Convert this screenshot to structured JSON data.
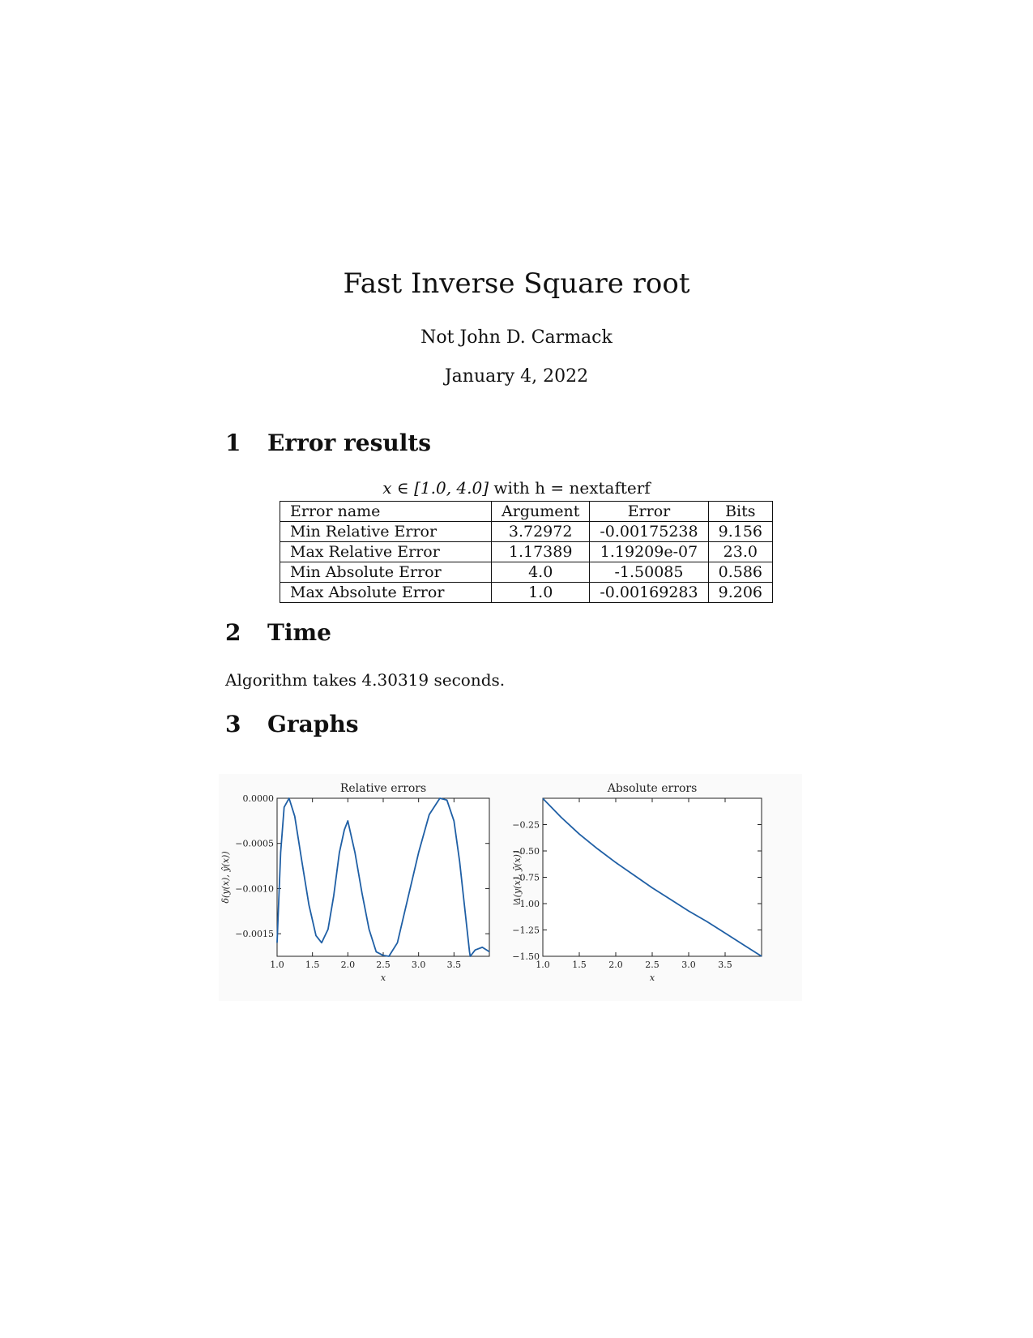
{
  "paper": {
    "title": "Fast Inverse Square root",
    "author": "Not John D. Carmack",
    "date": "January 4, 2022"
  },
  "sections": [
    {
      "number": "1",
      "title": "Error results"
    },
    {
      "number": "2",
      "title": "Time"
    },
    {
      "number": "3",
      "title": "Graphs"
    }
  ],
  "table": {
    "caption_math": "x ∈ [1.0, 4.0]",
    "caption_text": " with h = nextafterf",
    "headers": [
      "Error name",
      "Argument",
      "Error",
      "Bits"
    ],
    "rows": [
      [
        "Min Relative Error",
        "3.72972",
        "-0.00175238",
        "9.156"
      ],
      [
        "Max Relative Error",
        "1.17389",
        "1.19209e-07",
        "23.0"
      ],
      [
        "Min Absolute Error",
        "4.0",
        "-1.50085",
        "0.586"
      ],
      [
        "Max Absolute Error",
        "1.0",
        "-0.00169283",
        "9.206"
      ]
    ]
  },
  "time_text": "Algorithm takes 4.30319 seconds.",
  "chart_data": [
    {
      "type": "line",
      "title": "Relative errors",
      "xlabel": "x",
      "ylabel": "δ(y(x), ŷ(x))",
      "xlim": [
        1.0,
        4.0
      ],
      "ylim": [
        -0.00175,
        0.0
      ],
      "xticks": [
        "1.0",
        "1.5",
        "2.0",
        "2.5",
        "3.0",
        "3.5"
      ],
      "yticks": [
        "0.0000",
        "−0.0005",
        "−0.0010",
        "−0.0015"
      ],
      "color": "#1f5fa5",
      "series": [
        {
          "x": [
            1.0,
            1.05,
            1.1,
            1.17,
            1.25,
            1.35,
            1.45,
            1.55,
            1.63,
            1.72,
            1.8,
            1.88,
            1.95,
            2.0,
            2.1,
            2.2,
            2.3,
            2.4,
            2.5,
            2.58,
            2.7,
            2.85,
            3.0,
            3.15,
            3.3,
            3.4,
            3.5,
            3.58,
            3.65,
            3.72,
            3.73,
            3.8,
            3.9,
            4.0
          ],
          "y": [
            -0.0016,
            -0.0006,
            -0.0001,
            0.0,
            -0.0002,
            -0.0007,
            -0.00118,
            -0.00152,
            -0.0016,
            -0.00145,
            -0.00108,
            -0.0006,
            -0.00035,
            -0.00025,
            -0.0006,
            -0.00105,
            -0.00145,
            -0.0017,
            -0.00174,
            -0.00175,
            -0.0016,
            -0.0011,
            -0.0006,
            -0.00018,
            0.0,
            -2e-05,
            -0.00025,
            -0.0007,
            -0.0012,
            -0.0017,
            -0.00175,
            -0.00168,
            -0.00165,
            -0.0017
          ]
        }
      ]
    },
    {
      "type": "line",
      "title": "Absolute errors",
      "xlabel": "x",
      "ylabel": "Δ(y(x), ŷ(x))",
      "xlim": [
        1.0,
        4.0
      ],
      "ylim": [
        -1.5,
        -0.0
      ],
      "xticks": [
        "1.0",
        "1.5",
        "2.0",
        "2.5",
        "3.0",
        "3.5"
      ],
      "yticks": [
        "−0.25",
        "−0.50",
        "−0.75",
        "−1.00",
        "−1.25",
        "−1.50"
      ],
      "color": "#1f5fa5",
      "series": [
        {
          "x": [
            1.0,
            1.25,
            1.5,
            1.75,
            2.0,
            2.25,
            2.5,
            2.75,
            3.0,
            3.25,
            3.5,
            3.75,
            4.0
          ],
          "y": [
            -0.0017,
            -0.18,
            -0.34,
            -0.48,
            -0.61,
            -0.73,
            -0.85,
            -0.96,
            -1.07,
            -1.17,
            -1.28,
            -1.39,
            -1.5
          ]
        }
      ]
    }
  ]
}
